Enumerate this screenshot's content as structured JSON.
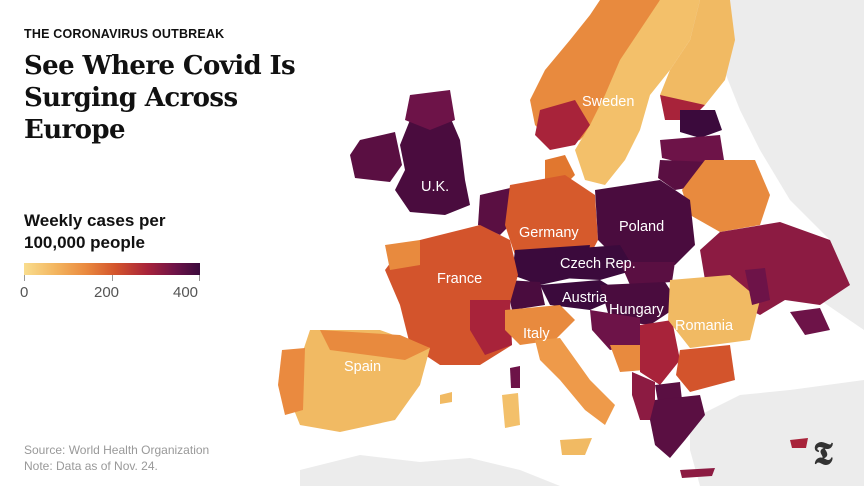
{
  "header": {
    "kicker": "THE CORONAVIRUS OUTBREAK",
    "headline": "See Where Covid Is Surging Across Europe"
  },
  "legend": {
    "title_line1": "Weekly cases per",
    "title_line2": "100,000 people",
    "ticks": [
      "0",
      "200",
      "400"
    ],
    "scale": [
      0,
      400
    ]
  },
  "map": {
    "labels": {
      "sweden": "Sweden",
      "uk": "U.K.",
      "germany": "Germany",
      "poland": "Poland",
      "france": "France",
      "czech": "Czech Rep.",
      "austria": "Austria",
      "hungary": "Hungary",
      "romania": "Romania",
      "italy": "Italy",
      "spain": "Spain"
    },
    "colors": {
      "low": "#f9dd8e",
      "mid": "#d3542c",
      "high": "#3b0a3c",
      "background": "#ececec"
    }
  },
  "footer": {
    "source": "Source: World Health Organization",
    "note": "Note: Data as of Nov. 24."
  },
  "logo": {
    "icon": "nyt-logo-icon",
    "glyph": "𝕿"
  }
}
